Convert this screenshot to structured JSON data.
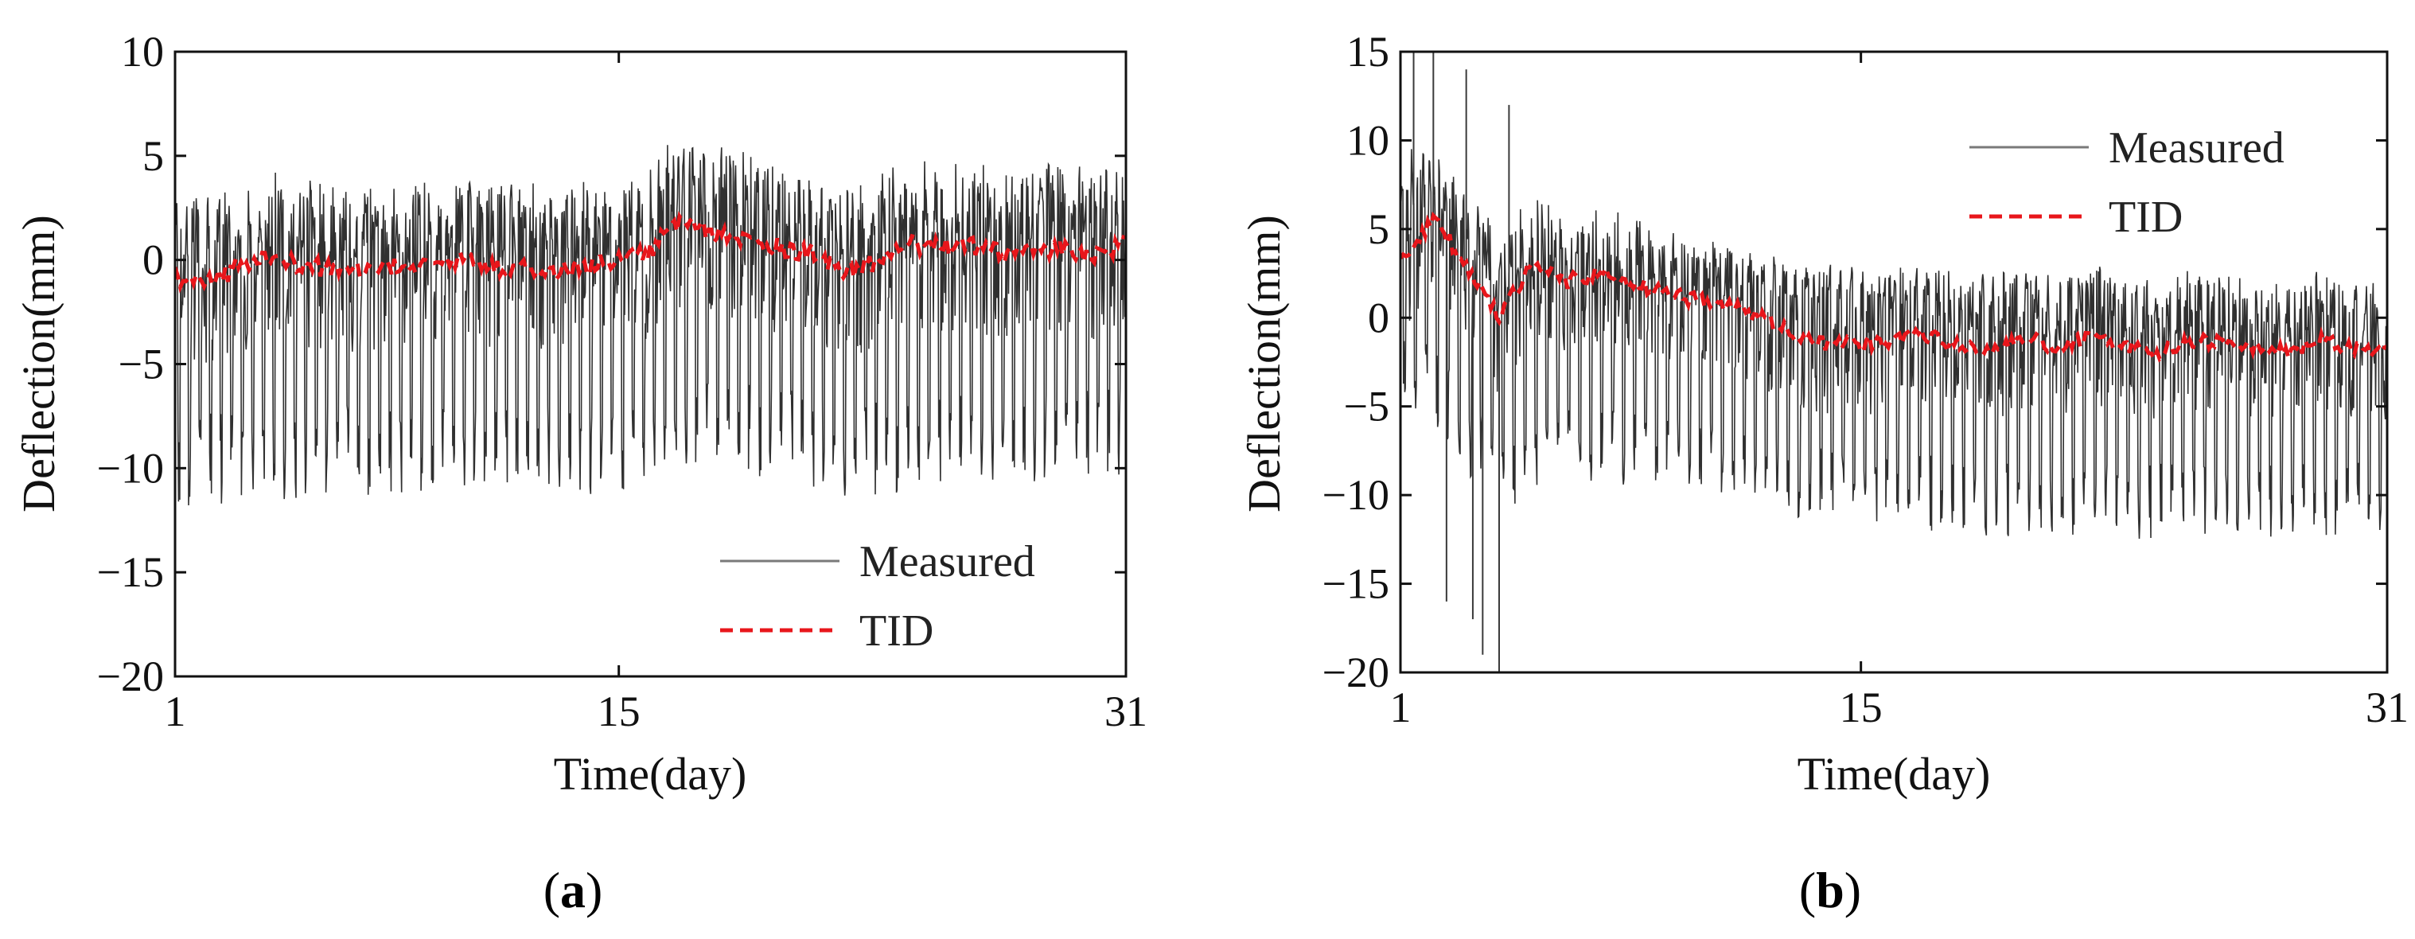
{
  "chart_data": [
    {
      "type": "line",
      "panel": "a",
      "xlabel": "Time(day)",
      "ylabel": "Deflection(mm)",
      "xlim": [
        1,
        31
      ],
      "ylim": [
        -20,
        10
      ],
      "xticks": [
        1,
        15,
        31
      ],
      "yticks": [
        -20,
        -15,
        -10,
        -5,
        0,
        5,
        10
      ],
      "ytick_labels": [
        "−20",
        "−15",
        "−10",
        "−5",
        "0",
        "5",
        "10"
      ],
      "legend": {
        "position": "bottom-right",
        "entries": [
          "Measured",
          "TID"
        ]
      },
      "series": [
        {
          "name": "Measured",
          "color": "#1a1a1a",
          "style": "solid",
          "upper_envelope": {
            "x": [
              1,
              5,
              10,
              15,
              17,
              20,
              22,
              25,
              31
            ],
            "y": [
              3,
              3.5,
              3.2,
              3.5,
              5.5,
              4.5,
              3.5,
              3.8,
              4.5
            ]
          },
          "lower_envelope": {
            "x": [
              1,
              5,
              10,
              15,
              17,
              20,
              22,
              25,
              31
            ],
            "y": [
              -12,
              -11.5,
              -11,
              -11.5,
              -10.5,
              -10.5,
              -11.5,
              -11,
              -10.5
            ]
          },
          "cycles_per_day": 3
        },
        {
          "name": "TID",
          "color": "#e8161b",
          "style": "dashed",
          "x": [
            1,
            2,
            3,
            4,
            5,
            6,
            7,
            8,
            9,
            10,
            11,
            12,
            13,
            14,
            15,
            16,
            17,
            18,
            19,
            20,
            21,
            22,
            23,
            24,
            25,
            26,
            27,
            28,
            29,
            30,
            31
          ],
          "y": [
            -0.8,
            -1.2,
            -0.3,
            0.2,
            -0.2,
            -0.5,
            -0.6,
            -0.3,
            -0.2,
            0.0,
            -0.4,
            -0.2,
            -0.6,
            -0.3,
            0.0,
            0.5,
            2.0,
            1.2,
            1.0,
            0.6,
            0.4,
            -0.6,
            -0.2,
            0.8,
            0.6,
            0.7,
            0.3,
            0.4,
            0.6,
            0.2,
            0.8
          ]
        }
      ]
    },
    {
      "type": "line",
      "panel": "b",
      "xlabel": "Time(day)",
      "ylabel": "Deflection(mm)",
      "xlim": [
        1,
        31
      ],
      "ylim": [
        -20,
        15
      ],
      "xticks": [
        1,
        15,
        31
      ],
      "yticks": [
        -20,
        -15,
        -10,
        -5,
        0,
        5,
        10,
        15
      ],
      "ytick_labels": [
        "−20",
        "−15",
        "−10",
        "−5",
        "0",
        "5",
        "10",
        "15"
      ],
      "legend": {
        "position": "top-right",
        "entries": [
          "Measured",
          "TID"
        ]
      },
      "series": [
        {
          "name": "Measured",
          "color": "#1a1a1a",
          "style": "solid",
          "upper_envelope": {
            "x": [
              1,
              2,
              3,
              4,
              6,
              10,
              15,
              20,
              25,
              31
            ],
            "y": [
              10,
              9,
              7,
              5.5,
              5,
              4,
              3,
              2.5,
              2,
              2
            ]
          },
          "lower_envelope": {
            "x": [
              1,
              2,
              3,
              4,
              6,
              10,
              15,
              20,
              25,
              31
            ],
            "y": [
              -5,
              -6,
              -9,
              -11,
              -9,
              -10,
              -12,
              -12.5,
              -12.5,
              -12.5
            ]
          },
          "spikes": [
            {
              "x": 1.4,
              "y": 15
            },
            {
              "x": 2.0,
              "y": 15
            },
            {
              "x": 2.4,
              "y": -16
            },
            {
              "x": 3.0,
              "y": 14
            },
            {
              "x": 3.2,
              "y": -17
            },
            {
              "x": 3.5,
              "y": -19
            },
            {
              "x": 4.0,
              "y": -20
            },
            {
              "x": 4.3,
              "y": 12
            }
          ],
          "cycles_per_day": 3
        },
        {
          "name": "TID",
          "color": "#e8161b",
          "style": "dashed",
          "x": [
            1,
            2,
            3,
            4,
            5,
            6,
            7,
            8,
            9,
            10,
            11,
            12,
            13,
            14,
            15,
            16,
            17,
            18,
            19,
            20,
            21,
            22,
            23,
            24,
            25,
            26,
            27,
            28,
            29,
            30,
            31
          ],
          "y": [
            3.0,
            5.5,
            3.0,
            0.0,
            3.0,
            2.0,
            2.5,
            2.0,
            1.5,
            1.0,
            0.8,
            0.0,
            -1.0,
            -1.5,
            -1.5,
            -1.2,
            -1.0,
            -1.5,
            -1.8,
            -1.2,
            -1.6,
            -1.0,
            -1.5,
            -2.0,
            -1.3,
            -1.5,
            -1.8,
            -2.0,
            -1.2,
            -1.8,
            -2.0
          ]
        }
      ]
    }
  ],
  "panel_labels": {
    "a": {
      "open": "(",
      "letter": "a",
      "close": ")"
    },
    "b": {
      "open": "(",
      "letter": "b",
      "close": ")"
    }
  }
}
